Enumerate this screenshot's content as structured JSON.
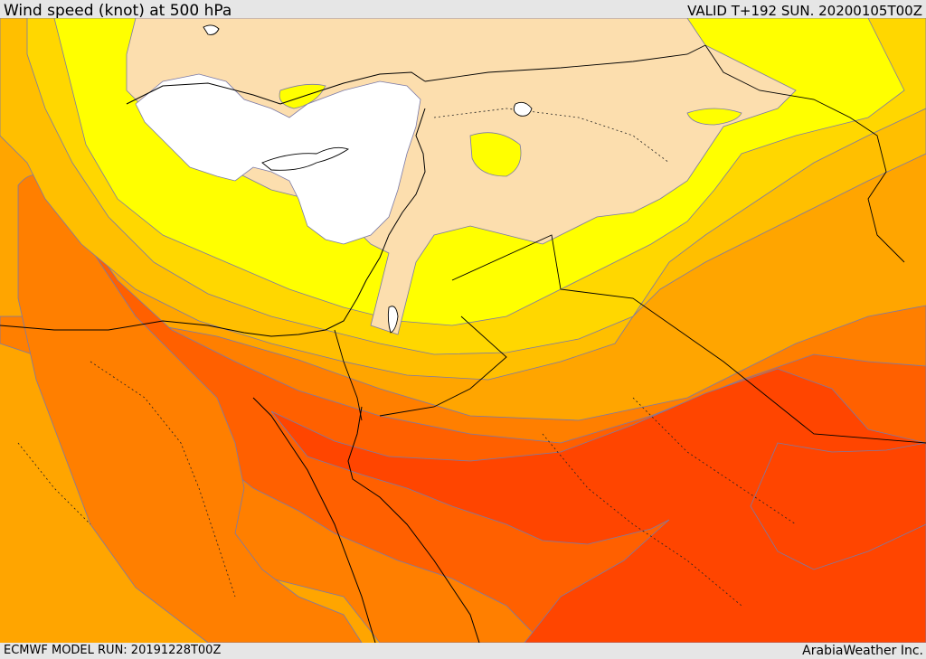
{
  "header": {
    "title": "Wind speed (knot) at 500 hPa",
    "valid": "VALID T+192 SUN. 20200105T00Z"
  },
  "footer": {
    "model_run": "ECMWF MODEL RUN: 20191228T00Z",
    "credit": "ArabiaWeather Inc."
  },
  "colors": {
    "bands": [
      "#ffffff",
      "#fcdeae",
      "#ffff00",
      "#ffd700",
      "#ffbf00",
      "#ffa500",
      "#ff7f00",
      "#ff6000",
      "#ff4500"
    ],
    "land_border": "#000000",
    "contour": "#7a7aa8",
    "frame_bg": "#e6e6e6"
  },
  "map": {
    "variable": "wind-speed",
    "level": "500 hPa"
  }
}
